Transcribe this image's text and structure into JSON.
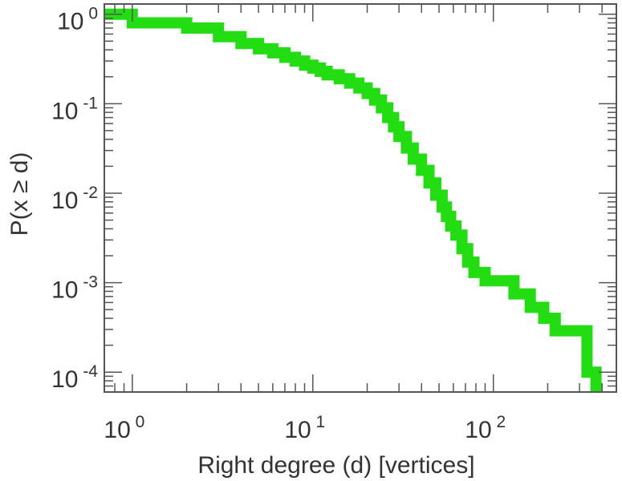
{
  "chart_data": {
    "type": "line",
    "title": "",
    "xlabel": "Right degree (d) [vertices]",
    "ylabel": "P(x ≥ d)",
    "xscale": "log",
    "yscale": "log",
    "xlim": [
      0.7,
      480
    ],
    "ylim": [
      6e-05,
      1.3
    ],
    "x_ticks": [
      {
        "base": "10",
        "exp": "0",
        "value": 1
      },
      {
        "base": "10",
        "exp": "1",
        "value": 10
      },
      {
        "base": "10",
        "exp": "2",
        "value": 100
      }
    ],
    "y_ticks": [
      {
        "base": "10",
        "exp": "0",
        "value": 1
      },
      {
        "base": "10",
        "exp": "-1",
        "value": 0.1
      },
      {
        "base": "10",
        "exp": "-2",
        "value": 0.01
      },
      {
        "base": "10",
        "exp": "-3",
        "value": 0.001
      },
      {
        "base": "10",
        "exp": "-4",
        "value": 0.0001
      }
    ],
    "grid": false,
    "legend": "none",
    "series": [
      {
        "color": "#22dd11",
        "step": true,
        "points": [
          [
            0.7,
            1.0
          ],
          [
            1,
            1.0
          ],
          [
            1,
            0.8
          ],
          [
            2,
            0.8
          ],
          [
            2,
            0.7
          ],
          [
            3,
            0.7
          ],
          [
            3,
            0.56
          ],
          [
            4,
            0.56
          ],
          [
            4,
            0.47
          ],
          [
            5,
            0.47
          ],
          [
            5,
            0.41
          ],
          [
            6,
            0.41
          ],
          [
            6,
            0.37
          ],
          [
            7,
            0.37
          ],
          [
            7,
            0.33
          ],
          [
            8,
            0.33
          ],
          [
            8,
            0.3
          ],
          [
            9,
            0.3
          ],
          [
            9,
            0.27
          ],
          [
            10,
            0.27
          ],
          [
            10,
            0.25
          ],
          [
            11,
            0.25
          ],
          [
            11,
            0.23
          ],
          [
            12,
            0.23
          ],
          [
            12,
            0.21
          ],
          [
            14,
            0.21
          ],
          [
            14,
            0.19
          ],
          [
            16,
            0.19
          ],
          [
            16,
            0.17
          ],
          [
            18,
            0.17
          ],
          [
            18,
            0.15
          ],
          [
            20,
            0.15
          ],
          [
            20,
            0.13
          ],
          [
            22,
            0.13
          ],
          [
            22,
            0.11
          ],
          [
            24,
            0.11
          ],
          [
            24,
            0.09
          ],
          [
            26,
            0.09
          ],
          [
            26,
            0.07
          ],
          [
            28,
            0.07
          ],
          [
            28,
            0.055
          ],
          [
            30,
            0.055
          ],
          [
            30,
            0.043
          ],
          [
            33,
            0.043
          ],
          [
            33,
            0.032
          ],
          [
            36,
            0.032
          ],
          [
            36,
            0.024
          ],
          [
            40,
            0.024
          ],
          [
            40,
            0.018
          ],
          [
            44,
            0.018
          ],
          [
            44,
            0.013
          ],
          [
            48,
            0.013
          ],
          [
            48,
            0.0095
          ],
          [
            52,
            0.0095
          ],
          [
            52,
            0.007
          ],
          [
            55,
            0.007
          ],
          [
            55,
            0.0055
          ],
          [
            58,
            0.0055
          ],
          [
            58,
            0.0043
          ],
          [
            62,
            0.0043
          ],
          [
            62,
            0.0034
          ],
          [
            67,
            0.0034
          ],
          [
            67,
            0.0024
          ],
          [
            72,
            0.0024
          ],
          [
            72,
            0.0017
          ],
          [
            78,
            0.0017
          ],
          [
            78,
            0.0013
          ],
          [
            90,
            0.0013
          ],
          [
            90,
            0.00105
          ],
          [
            130,
            0.00105
          ],
          [
            130,
            0.00075
          ],
          [
            160,
            0.00075
          ],
          [
            160,
            0.00053
          ],
          [
            190,
            0.00053
          ],
          [
            190,
            0.0004
          ],
          [
            220,
            0.0004
          ],
          [
            220,
            0.00029
          ],
          [
            330,
            0.00029
          ],
          [
            330,
            0.0001
          ],
          [
            370,
            0.0001
          ],
          [
            370,
            6e-05
          ]
        ]
      }
    ]
  }
}
